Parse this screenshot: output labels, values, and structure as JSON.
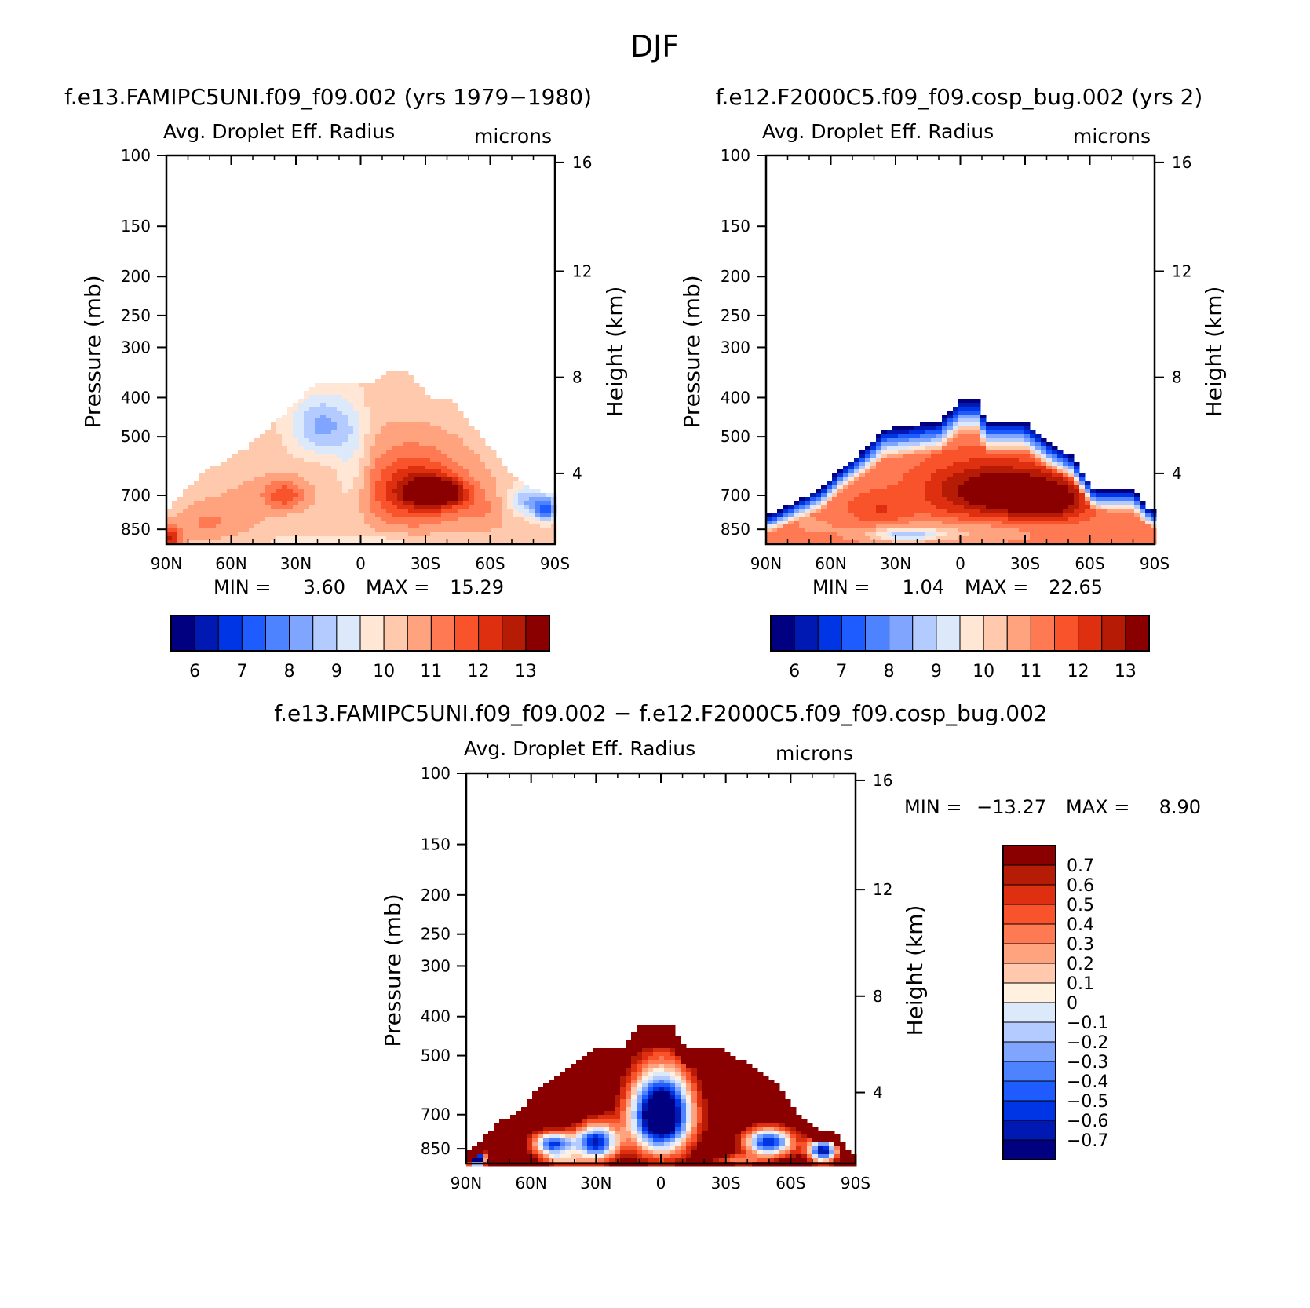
{
  "figure": {
    "title": "DJF"
  },
  "colors": {
    "abs_levels": [
      "#000080",
      "#0019b3",
      "#0035e5",
      "#1f5cff",
      "#4d83ff",
      "#7fa5ff",
      "#b3cbff",
      "#dbe9fb",
      "#ffe6d5",
      "#ffc9ae",
      "#ffa27e",
      "#ff7a52",
      "#f8532a",
      "#de3010",
      "#b61b05",
      "#8a0000"
    ],
    "diff_levels": [
      "#000080",
      "#0019b3",
      "#0035e5",
      "#1f5cff",
      "#4d83ff",
      "#7fa5ff",
      "#b3cbff",
      "#dbe9fb",
      "#fff0e0",
      "#ffc9ae",
      "#ffa27e",
      "#ff7a52",
      "#f8532a",
      "#de3010",
      "#b61b05",
      "#8a0000"
    ]
  },
  "chart_data": [
    {
      "type": "heatmap",
      "panel": "left",
      "title": "f.e13.FAMIPC5UNI.f09_f09.002 (yrs 1979−1980)",
      "left_label": "Avg. Droplet Eff. Radius",
      "right_label": "microns",
      "ylabel": "Pressure (mb)",
      "y2label": "Height (km)",
      "x_ticks": [
        "90N",
        "60N",
        "30N",
        "0",
        "30S",
        "60S",
        "90S"
      ],
      "x_range": [
        90,
        -90
      ],
      "y_ticks": [
        100,
        150,
        200,
        250,
        300,
        400,
        500,
        700,
        850
      ],
      "y_range": [
        100,
        925
      ],
      "y_scale": "log",
      "y2_ticks": [
        16,
        12,
        8,
        4
      ],
      "stats": {
        "min_label": "MIN =",
        "min": "3.60",
        "max_label": "MAX =",
        "max": "15.29"
      },
      "colorbar": {
        "orientation": "horizontal",
        "labels": [
          "6",
          "7",
          "8",
          "9",
          "10",
          "11",
          "12",
          "13"
        ]
      },
      "field": {
        "top_profile": [
          [
            -88,
            -750
          ],
          [
            -82,
            -680
          ],
          [
            -70,
            -600
          ],
          [
            -52,
            -530
          ],
          [
            -40,
            -460
          ],
          [
            -28,
            -400
          ],
          [
            -20,
            -370
          ],
          [
            5,
            -370
          ],
          [
            12,
            -345
          ],
          [
            22,
            -345
          ],
          [
            32,
            -400
          ],
          [
            42,
            -400
          ],
          [
            50,
            -460
          ],
          [
            60,
            -530
          ],
          [
            70,
            -630
          ],
          [
            82,
            -680
          ],
          [
            88,
            -690
          ]
        ],
        "blobs": [
          {
            "x": -88,
            "p": 900,
            "rx": 5,
            "rp": 60,
            "v": 12.5
          },
          {
            "x": -72,
            "p": 820,
            "rx": 14,
            "rp": 90,
            "v": 11
          },
          {
            "x": -55,
            "p": 760,
            "rx": 14,
            "rp": 130,
            "v": 10.6
          },
          {
            "x": -35,
            "p": 700,
            "rx": 10,
            "rp": 60,
            "v": 11.8
          },
          {
            "x": -40,
            "p": 640,
            "rx": 20,
            "rp": 120,
            "v": 10.3
          },
          {
            "x": -18,
            "p": 470,
            "rx": 14,
            "rp": 80,
            "v": 8.3
          },
          {
            "x": -4,
            "p": 600,
            "rx": 8,
            "rp": 180,
            "v": 9.3
          },
          {
            "x": 25,
            "p": 680,
            "rx": 24,
            "rp": 150,
            "v": 12.6
          },
          {
            "x": 35,
            "p": 690,
            "rx": 12,
            "rp": 50,
            "v": 13.5
          },
          {
            "x": 10,
            "p": 500,
            "rx": 14,
            "rp": 120,
            "v": 10.3
          },
          {
            "x": 58,
            "p": 760,
            "rx": 12,
            "rp": 100,
            "v": 10.8
          },
          {
            "x": 78,
            "p": 720,
            "rx": 10,
            "rp": 60,
            "v": 8.5
          },
          {
            "x": 86,
            "p": 760,
            "rx": 6,
            "rp": 50,
            "v": 7.8
          },
          {
            "x": 0,
            "p": 905,
            "rx": 50,
            "rp": 30,
            "v": 9.7
          }
        ],
        "base_value": 10.2
      }
    },
    {
      "type": "heatmap",
      "panel": "right",
      "title": "f.e12.F2000C5.f09_f09.cosp_bug.002 (yrs 2)",
      "left_label": "Avg. Droplet Eff. Radius",
      "right_label": "microns",
      "ylabel": "Pressure (mb)",
      "y2label": "Height (km)",
      "x_ticks": [
        "90N",
        "60N",
        "30N",
        "0",
        "30S",
        "60S",
        "90S"
      ],
      "x_range": [
        90,
        -90
      ],
      "y_ticks": [
        100,
        150,
        200,
        250,
        300,
        400,
        500,
        700,
        850
      ],
      "y_range": [
        100,
        925
      ],
      "y_scale": "log",
      "y2_ticks": [
        16,
        12,
        8,
        4
      ],
      "stats": {
        "min_label": "MIN =",
        "min": "1.04",
        "max_label": "MAX =",
        "max": "22.65"
      },
      "colorbar": {
        "orientation": "horizontal",
        "labels": [
          "6",
          "7",
          "8",
          "9",
          "10",
          "11",
          "12",
          "13"
        ]
      },
      "field": {
        "top_profile": [
          [
            -88,
            -780
          ],
          [
            -80,
            -740
          ],
          [
            -66,
            -680
          ],
          [
            -55,
            -600
          ],
          [
            -45,
            -540
          ],
          [
            -35,
            -480
          ],
          [
            -10,
            -460
          ],
          [
            0,
            -405
          ],
          [
            8,
            -405
          ],
          [
            12,
            -460
          ],
          [
            30,
            -460
          ],
          [
            42,
            -520
          ],
          [
            52,
            -560
          ],
          [
            62,
            -680
          ],
          [
            80,
            -680
          ],
          [
            86,
            -740
          ],
          [
            88,
            -760
          ]
        ],
        "blobs": [
          {
            "x": -70,
            "p": 820,
            "rx": 14,
            "rp": 80,
            "v": 11
          },
          {
            "x": -38,
            "p": 760,
            "rx": 14,
            "rp": 70,
            "v": 12
          },
          {
            "x": 15,
            "p": 680,
            "rx": 30,
            "rp": 110,
            "v": 13.6
          },
          {
            "x": 40,
            "p": 720,
            "rx": 18,
            "rp": 80,
            "v": 13.4
          },
          {
            "x": -5,
            "p": 860,
            "rx": 40,
            "rp": 60,
            "v": 10.4
          },
          {
            "x": -25,
            "p": 880,
            "rx": 15,
            "rp": 30,
            "v": 9
          }
        ],
        "base_value": 11.2,
        "top_fade": {
          "width_mb": 90,
          "value": 5.5
        }
      }
    },
    {
      "type": "heatmap",
      "panel": "bottom",
      "title": "f.e13.FAMIPC5UNI.f09_f09.002 − f.e12.F2000C5.f09_f09.cosp_bug.002",
      "left_label": "Avg. Droplet Eff. Radius",
      "right_label": "microns",
      "ylabel": "Pressure (mb)",
      "y2label": "Height (km)",
      "x_ticks": [
        "90N",
        "60N",
        "30N",
        "0",
        "30S",
        "60S",
        "90S"
      ],
      "x_range": [
        90,
        -90
      ],
      "y_ticks": [
        100,
        150,
        200,
        250,
        300,
        400,
        500,
        700,
        850
      ],
      "y_range": [
        100,
        925
      ],
      "y_scale": "log",
      "y2_ticks": [
        16,
        12,
        8,
        4
      ],
      "stats": {
        "min_label": "MIN =",
        "min": "−13.27",
        "max_label": "MAX =",
        "max": "8.90"
      },
      "colorbar": {
        "orientation": "vertical",
        "labels": [
          "0.7",
          "0.6",
          "0.5",
          "0.4",
          "0.3",
          "0.2",
          "0.1",
          "0",
          "−0.1",
          "−0.2",
          "−0.3",
          "−0.4",
          "−0.5",
          "−0.6",
          "−0.7"
        ]
      },
      "field": {
        "top_profile": [
          [
            -88,
            -860
          ],
          [
            -84,
            -820
          ],
          [
            -75,
            -730
          ],
          [
            -65,
            -680
          ],
          [
            -58,
            -610
          ],
          [
            -48,
            -560
          ],
          [
            -38,
            -510
          ],
          [
            -30,
            -480
          ],
          [
            -18,
            -480
          ],
          [
            -10,
            -420
          ],
          [
            5,
            -420
          ],
          [
            12,
            -480
          ],
          [
            28,
            -480
          ],
          [
            45,
            -540
          ],
          [
            55,
            -600
          ],
          [
            62,
            -680
          ],
          [
            72,
            -760
          ],
          [
            80,
            -760
          ],
          [
            86,
            -860
          ],
          [
            88,
            -880
          ]
        ],
        "blobs": [
          {
            "x": 0,
            "p": 700,
            "rx": 15,
            "rp": 170,
            "v": -1.2
          },
          {
            "x": -30,
            "p": 820,
            "rx": 10,
            "rp": 90,
            "v": -0.6
          },
          {
            "x": -50,
            "p": 830,
            "rx": 10,
            "rp": 60,
            "v": -0.5
          },
          {
            "x": 50,
            "p": 820,
            "rx": 12,
            "rp": 70,
            "v": -0.6
          },
          {
            "x": 75,
            "p": 860,
            "rx": 7,
            "rp": 60,
            "v": -0.7
          },
          {
            "x": -85,
            "p": 900,
            "rx": 4,
            "rp": 40,
            "v": -1
          },
          {
            "x": -45,
            "p": 905,
            "rx": 10,
            "rp": 30,
            "v": 0.4
          },
          {
            "x": 35,
            "p": 905,
            "rx": 12,
            "rp": 25,
            "v": 0.4
          }
        ],
        "base_value": 1.0
      }
    }
  ]
}
